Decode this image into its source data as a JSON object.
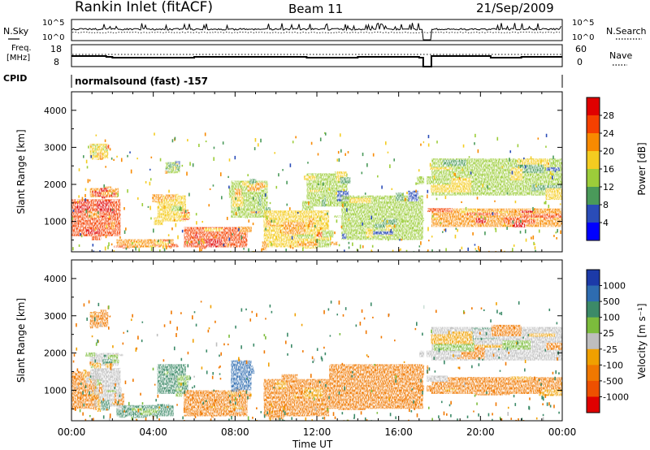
{
  "header": {
    "station": "Rankin Inlet (fitACF)",
    "beam": "Beam 11",
    "date": "21/Sep/2009"
  },
  "top_panel": {
    "left_label": "N.Sky",
    "right_label": "N.Search",
    "left_ticks": [
      "10^5",
      "10^0"
    ],
    "right_ticks": [
      "10^5",
      "10^0"
    ]
  },
  "freq_panel": {
    "left_label_1": "Freq.",
    "left_label_2": "[MHz]",
    "right_label": "Nave",
    "left_ticks": [
      "18",
      "8"
    ],
    "right_ticks": [
      "60",
      "0"
    ]
  },
  "cpid": {
    "label": "CPID",
    "program": "normalsound (fast) -157"
  },
  "x_axis": {
    "title": "Time UT",
    "ticks": [
      "00:00",
      "04:00",
      "08:00",
      "12:00",
      "16:00",
      "20:00",
      "00:00"
    ]
  },
  "power_scale": {
    "title": "Power [dB]",
    "labels": [
      "28",
      "24",
      "20",
      "16",
      "12",
      "8",
      "4"
    ],
    "colors": [
      "#e00000",
      "#f54000",
      "#f88a00",
      "#f4cc20",
      "#9ccd3a",
      "#4a9a5a",
      "#2a4cb8",
      "#0000ff"
    ]
  },
  "velocity_scale": {
    "title": "Velocity [m s⁻¹]",
    "labels": [
      "1000",
      "500",
      "100",
      "25",
      "-25",
      "-100",
      "-500",
      "-1000"
    ],
    "colors": [
      "#1c3aa8",
      "#2e6cb0",
      "#3c8a68",
      "#7cbc3c",
      "#bebebe",
      "#f0a000",
      "#f07800",
      "#ee5000",
      "#e00000"
    ]
  },
  "chart_data": [
    {
      "type": "heatmap",
      "title": "Power",
      "xlabel": "Time UT",
      "ylabel": "Slant Range [km]",
      "xlim": [
        0,
        24
      ],
      "ylim": [
        180,
        4500
      ],
      "x_ticks": [
        "00:00",
        "04:00",
        "08:00",
        "12:00",
        "16:00",
        "20:00",
        "00:00"
      ],
      "y_ticks": [
        1000,
        2000,
        3000,
        4000
      ],
      "colorbar": {
        "label": "Power [dB]",
        "ticks": [
          4,
          8,
          12,
          16,
          20,
          24,
          28
        ]
      },
      "regions": [
        {
          "t": [
            0.0,
            2.4
          ],
          "r": [
            600,
            1600
          ],
          "power": 26
        },
        {
          "t": [
            0.9,
            2.3
          ],
          "r": [
            1650,
            1900
          ],
          "power": 22
        },
        {
          "t": [
            0.9,
            1.8
          ],
          "r": [
            2700,
            3100
          ],
          "power": 16
        },
        {
          "t": [
            2.2,
            5.0
          ],
          "r": [
            300,
            520
          ],
          "power": 20
        },
        {
          "t": [
            4.2,
            5.6
          ],
          "r": [
            1000,
            1700
          ],
          "power": 18
        },
        {
          "t": [
            4.6,
            5.3
          ],
          "r": [
            2300,
            2600
          ],
          "power": 12
        },
        {
          "t": [
            5.5,
            8.6
          ],
          "r": [
            300,
            850
          ],
          "power": 24
        },
        {
          "t": [
            7.8,
            9.6
          ],
          "r": [
            1100,
            2100
          ],
          "power": 14
        },
        {
          "t": [
            9.4,
            12.6
          ],
          "r": [
            300,
            1300
          ],
          "power": 16
        },
        {
          "t": [
            11.5,
            13.5
          ],
          "r": [
            1400,
            2300
          ],
          "power": 12
        },
        {
          "t": [
            13.2,
            17.2
          ],
          "r": [
            500,
            1700
          ],
          "power": 12
        },
        {
          "t": [
            17.6,
            24.0
          ],
          "r": [
            850,
            1350
          ],
          "power": 22
        },
        {
          "t": [
            17.6,
            24.0
          ],
          "r": [
            1700,
            2700
          ],
          "power": 12
        }
      ]
    },
    {
      "type": "heatmap",
      "title": "Velocity",
      "xlabel": "Time UT",
      "ylabel": "Slant Range [km]",
      "xlim": [
        0,
        24
      ],
      "ylim": [
        180,
        4500
      ],
      "x_ticks": [
        "00:00",
        "04:00",
        "08:00",
        "12:00",
        "16:00",
        "20:00",
        "00:00"
      ],
      "y_ticks": [
        1000,
        2000,
        3000,
        4000
      ],
      "colorbar": {
        "label": "Velocity [m s⁻¹]",
        "ticks": [
          1000,
          500,
          100,
          25,
          -25,
          -100,
          -500,
          -1000
        ]
      },
      "regions": [
        {
          "t": [
            0.0,
            1.2
          ],
          "r": [
            500,
            1500
          ],
          "velocity": -150
        },
        {
          "t": [
            1.1,
            2.4
          ],
          "r": [
            550,
            1600
          ],
          "velocity": 0
        },
        {
          "t": [
            0.9,
            2.3
          ],
          "r": [
            1650,
            2000
          ],
          "velocity": 0
        },
        {
          "t": [
            0.9,
            1.8
          ],
          "r": [
            2700,
            3100
          ],
          "velocity": -150
        },
        {
          "t": [
            2.2,
            5.0
          ],
          "r": [
            300,
            600
          ],
          "velocity": 150
        },
        {
          "t": [
            4.2,
            5.6
          ],
          "r": [
            900,
            1700
          ],
          "velocity": 150
        },
        {
          "t": [
            5.5,
            8.6
          ],
          "r": [
            300,
            1000
          ],
          "velocity": -150
        },
        {
          "t": [
            7.8,
            8.8
          ],
          "r": [
            1000,
            1800
          ],
          "velocity": 700
        },
        {
          "t": [
            9.4,
            12.6
          ],
          "r": [
            300,
            1300
          ],
          "velocity": -150
        },
        {
          "t": [
            12.6,
            17.2
          ],
          "r": [
            500,
            1700
          ],
          "velocity": -300
        },
        {
          "t": [
            17.6,
            24.0
          ],
          "r": [
            900,
            1350
          ],
          "velocity": -150
        },
        {
          "t": [
            17.6,
            24.0
          ],
          "r": [
            1800,
            2700
          ],
          "velocity": 0
        }
      ]
    }
  ]
}
